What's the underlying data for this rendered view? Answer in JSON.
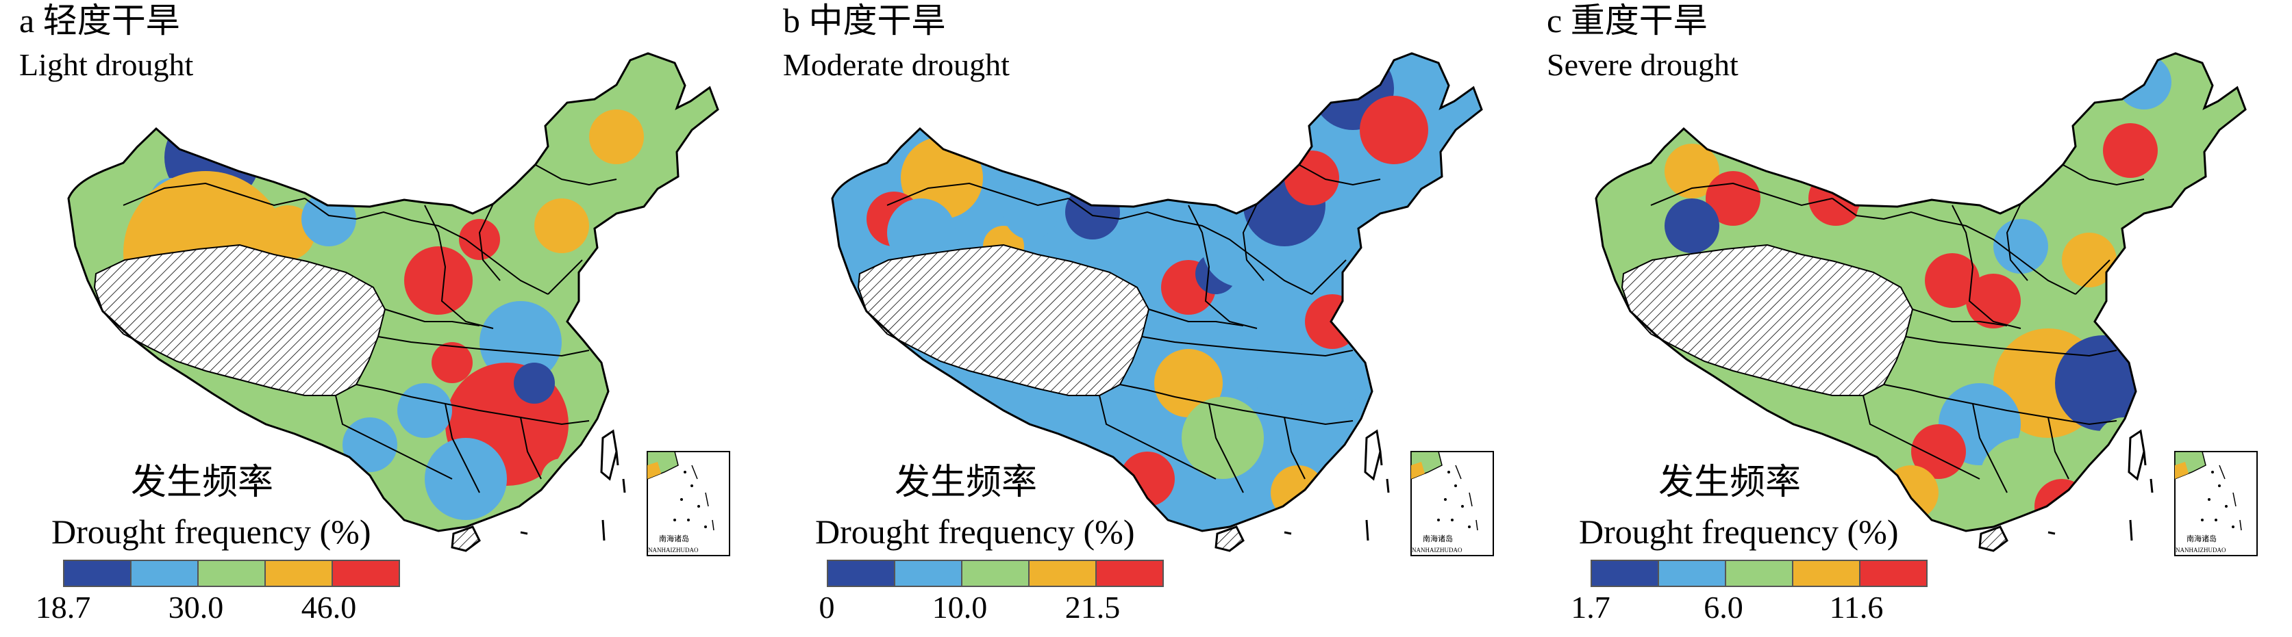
{
  "palette": [
    "#2e4a9e",
    "#5aade0",
    "#9ad17e",
    "#efb22e",
    "#e83434"
  ],
  "outline_color": "#000000",
  "plateau_fill": "hatched",
  "inset_label_cn": "南海诸岛",
  "inset_label_en": "NANHAIZHUDAO",
  "legend_cn": "发生频率",
  "legend_en": "Drought frequency (%)",
  "panels": [
    {
      "title_cn": "a 轻度干旱",
      "title_en": "Light drought",
      "ticks": [
        "18.7",
        "30.0",
        "46.0"
      ]
    },
    {
      "title_cn": "b 中度干旱",
      "title_en": "Moderate drought",
      "ticks": [
        "0",
        "10.0",
        "21.5"
      ]
    },
    {
      "title_cn": "c 重度干旱",
      "title_en": "Severe drought",
      "ticks": [
        "1.7",
        "6.0",
        "11.6"
      ]
    }
  ]
}
